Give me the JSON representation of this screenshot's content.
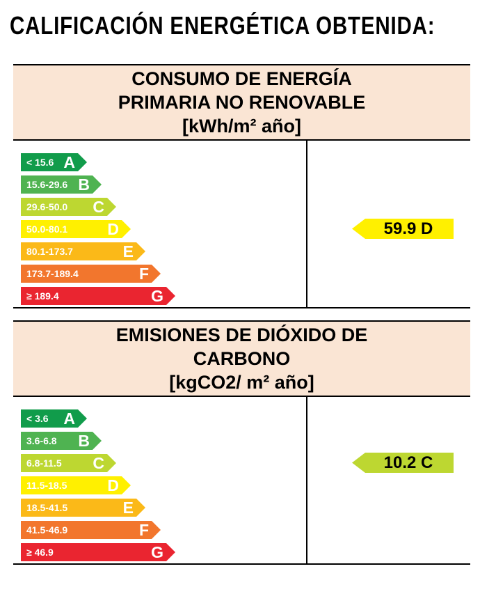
{
  "title": "CALIFICACIÓN ENERGÉTICA OBTENIDA:",
  "colors": {
    "A": "#119C4B",
    "B": "#4FB351",
    "C": "#BDD731",
    "D": "#FFF000",
    "E": "#FBB918",
    "F": "#F2762D",
    "G": "#EA2530",
    "header_bg": "#FAE5D4",
    "border": "#000000",
    "scale_text": "#FFFFFF",
    "result_text": "#000000"
  },
  "tables": [
    {
      "id": "primary-energy",
      "header_lines": [
        "CONSUMO DE ENERGÍA",
        "PRIMARIA NO RENOVABLE",
        "[kWh/m² año]"
      ],
      "scale": [
        {
          "letter": "A",
          "range": "< 15.6"
        },
        {
          "letter": "B",
          "range": "15.6-29.6"
        },
        {
          "letter": "C",
          "range": "29.6-50.0"
        },
        {
          "letter": "D",
          "range": "50.0-80.1"
        },
        {
          "letter": "E",
          "range": "80.1-173.7"
        },
        {
          "letter": "F",
          "range": "173.7-189.4"
        },
        {
          "letter": "G",
          "range": "≥ 189.4"
        }
      ],
      "result": {
        "label": "59.9 D",
        "value": 59.9,
        "letter": "D"
      }
    },
    {
      "id": "co2-emissions",
      "header_lines": [
        "EMISIONES DE DIÓXIDO DE",
        "CARBONO",
        "[kgCO2/ m² año]"
      ],
      "scale": [
        {
          "letter": "A",
          "range": "< 3.6"
        },
        {
          "letter": "B",
          "range": "3.6-6.8"
        },
        {
          "letter": "C",
          "range": "6.8-11.5"
        },
        {
          "letter": "D",
          "range": "11.5-18.5"
        },
        {
          "letter": "E",
          "range": "18.5-41.5"
        },
        {
          "letter": "F",
          "range": "41.5-46.9"
        },
        {
          "letter": "G",
          "range": "≥ 46.9"
        }
      ],
      "result": {
        "label": "10.2 C",
        "value": 10.2,
        "letter": "C"
      }
    }
  ],
  "chart_data": [
    {
      "type": "bar",
      "title": "CONSUMO DE ENERGÍA PRIMARIA NO RENOVABLE [kWh/m² año]",
      "categories": [
        "A",
        "B",
        "C",
        "D",
        "E",
        "F",
        "G"
      ],
      "category_ranges": [
        "< 15.6",
        "15.6-29.6",
        "29.6-50.0",
        "50.0-80.1",
        "80.1-173.7",
        "173.7-189.4",
        "≥ 189.4"
      ],
      "obtained_value": 59.9,
      "obtained_rating": "D",
      "legend_position": "none",
      "orientation": "horizontal"
    },
    {
      "type": "bar",
      "title": "EMISIONES DE DIÓXIDO DE CARBONO [kgCO2/ m² año]",
      "categories": [
        "A",
        "B",
        "C",
        "D",
        "E",
        "F",
        "G"
      ],
      "category_ranges": [
        "< 3.6",
        "3.6-6.8",
        "6.8-11.5",
        "11.5-18.5",
        "18.5-41.5",
        "41.5-46.9",
        "≥ 46.9"
      ],
      "obtained_value": 10.2,
      "obtained_rating": "C",
      "legend_position": "none",
      "orientation": "horizontal"
    }
  ]
}
